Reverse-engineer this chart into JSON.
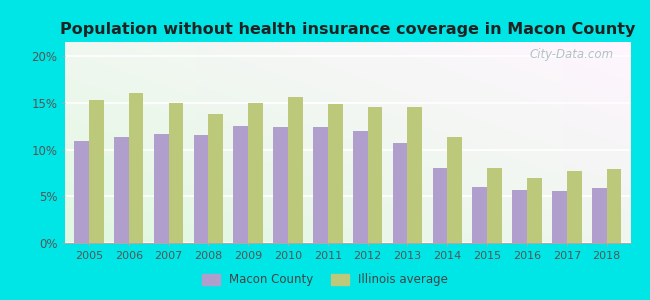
{
  "title": "Population without health insurance coverage in Macon County",
  "years": [
    2005,
    2006,
    2007,
    2008,
    2009,
    2010,
    2011,
    2012,
    2013,
    2014,
    2015,
    2016,
    2017,
    2018
  ],
  "macon_values": [
    0.109,
    0.113,
    0.117,
    0.115,
    0.125,
    0.124,
    0.124,
    0.12,
    0.107,
    0.08,
    0.06,
    0.057,
    0.056,
    0.059
  ],
  "illinois_values": [
    0.153,
    0.16,
    0.15,
    0.138,
    0.15,
    0.156,
    0.149,
    0.145,
    0.145,
    0.113,
    0.08,
    0.07,
    0.077,
    0.079
  ],
  "macon_color": "#b09fcc",
  "illinois_color": "#bcc87a",
  "background_outer": "#00e5e5",
  "title_color": "#222222",
  "ytick_labels": [
    "0%",
    "5%",
    "10%",
    "15%",
    "20%"
  ],
  "ytick_values": [
    0,
    0.05,
    0.1,
    0.15,
    0.2
  ],
  "ylim": [
    0,
    0.215
  ],
  "bar_width": 0.37,
  "legend_macon": "Macon County",
  "legend_illinois": "Illinois average",
  "watermark": "City-Data.com"
}
